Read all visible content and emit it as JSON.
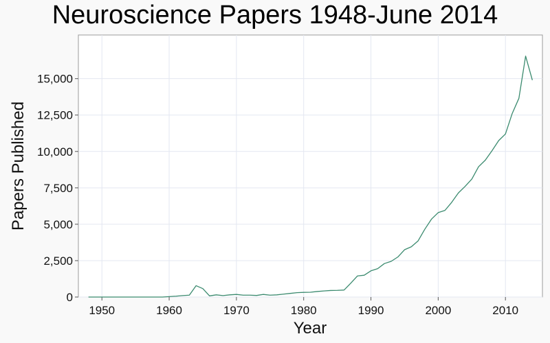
{
  "chart_data": {
    "type": "line",
    "title": "Neuroscience Papers 1948-June 2014",
    "xlabel": "Year",
    "ylabel": "Papers Published",
    "xlim": [
      1946.5,
      2015.5
    ],
    "ylim": [
      0,
      18000
    ],
    "x_ticks": [
      1950,
      1960,
      1970,
      1980,
      1990,
      2000,
      2010
    ],
    "x_tick_labels": [
      "1950",
      "1960",
      "1970",
      "1980",
      "1990",
      "2000",
      "2010"
    ],
    "y_ticks": [
      0,
      2500,
      5000,
      7500,
      10000,
      12500,
      15000
    ],
    "y_tick_labels": [
      "0",
      "2,500",
      "5,000",
      "7,500",
      "10,000",
      "12,500",
      "15,000"
    ],
    "grid": true,
    "legend": "none",
    "line_color": "#3a8a6e",
    "series": [
      {
        "x": [
          1948,
          1949,
          1950,
          1951,
          1952,
          1953,
          1954,
          1955,
          1956,
          1957,
          1958,
          1959,
          1960,
          1961,
          1962,
          1963,
          1964,
          1965,
          1966,
          1967,
          1968,
          1969,
          1970,
          1971,
          1972,
          1973,
          1974,
          1975,
          1976,
          1977,
          1978,
          1979,
          1980,
          1981,
          1982,
          1983,
          1984,
          1985,
          1986,
          1987,
          1988,
          1989,
          1990,
          1991,
          1992,
          1993,
          1994,
          1995,
          1996,
          1997,
          1998,
          1999,
          2000,
          2001,
          2002,
          2003,
          2004,
          2005,
          2006,
          2007,
          2008,
          2009,
          2010,
          2011,
          2012,
          2013,
          2014
        ],
        "values": [
          0,
          0,
          0,
          0,
          0,
          0,
          0,
          0,
          0,
          0,
          0,
          0,
          30,
          60,
          100,
          130,
          780,
          580,
          80,
          150,
          100,
          150,
          180,
          130,
          130,
          110,
          180,
          130,
          150,
          200,
          250,
          300,
          320,
          330,
          380,
          420,
          450,
          460,
          480,
          950,
          1450,
          1500,
          1800,
          1950,
          2300,
          2450,
          2750,
          3250,
          3450,
          3850,
          4650,
          5350,
          5800,
          5950,
          6500,
          7150,
          7600,
          8100,
          8950,
          9400,
          10050,
          10750,
          11200,
          12600,
          13650,
          16550,
          14900
        ]
      }
    ]
  }
}
